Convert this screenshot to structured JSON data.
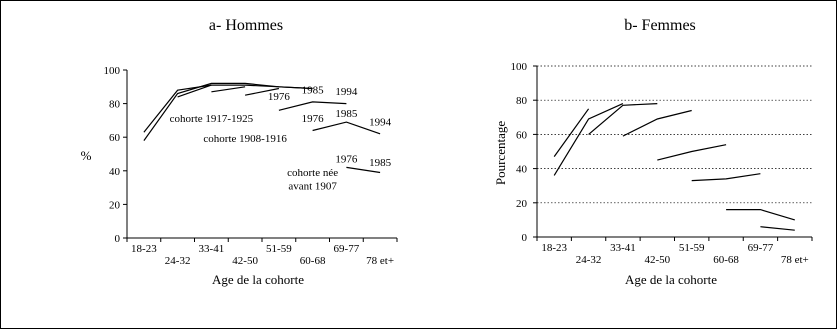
{
  "chart_data": [
    {
      "type": "line",
      "title": "a- Hommes",
      "xlabel": "Age de la cohorte",
      "ylabel": "%",
      "categories": [
        "18-23",
        "24-32",
        "33-41",
        "42-50",
        "51-59",
        "60-68",
        "69-77",
        "78 et+"
      ],
      "yticks": [
        0,
        20,
        40,
        60,
        80,
        100
      ],
      "ylim": [
        0,
        100
      ],
      "grid": false,
      "series": [
        {
          "values": [
            63,
            88,
            91,
            91,
            90,
            89,
            null,
            null
          ]
        },
        {
          "values": [
            58,
            86,
            92,
            92,
            90,
            89,
            null,
            null
          ]
        },
        {
          "values": [
            null,
            84,
            91,
            null,
            null,
            null,
            null,
            null
          ]
        },
        {
          "values": [
            null,
            null,
            87,
            90,
            null,
            null,
            null,
            null
          ]
        },
        {
          "values": [
            null,
            null,
            null,
            85,
            89,
            null,
            null,
            null
          ]
        },
        {
          "values": [
            null,
            null,
            null,
            null,
            76,
            81,
            80,
            null
          ]
        },
        {
          "values": [
            null,
            null,
            null,
            null,
            null,
            64,
            69,
            62
          ]
        },
        {
          "values": [
            null,
            null,
            null,
            null,
            null,
            null,
            42,
            39
          ]
        }
      ],
      "annotations": [
        {
          "text": "1976",
          "x": "51-59",
          "y": 82
        },
        {
          "text": "1985",
          "x": "60-68",
          "y": 86
        },
        {
          "text": "1994",
          "x": "69-77",
          "y": 85
        },
        {
          "text": "cohorte 1917-1925",
          "x": "33-41",
          "y": 69
        },
        {
          "text": "1976",
          "x": "60-68",
          "y": 69
        },
        {
          "text": "1985",
          "x": "69-77",
          "y": 72
        },
        {
          "text": "1994",
          "x": "78 et+",
          "y": 67
        },
        {
          "text": "cohorte 1908-1916",
          "x": "42-50",
          "y": 57
        },
        {
          "text": "1976",
          "x": "69-77",
          "y": 45
        },
        {
          "text": "1985",
          "x": "78 et+",
          "y": 43
        },
        {
          "text": "cohorte née",
          "x": "60-68",
          "y": 37
        },
        {
          "text": "avant 1907",
          "x": "60-68",
          "y": 29
        }
      ]
    },
    {
      "type": "line",
      "title": "b- Femmes",
      "xlabel": "Age de la cohorte",
      "ylabel": "Pourcentage",
      "categories": [
        "18-23",
        "24-32",
        "33-41",
        "42-50",
        "51-59",
        "60-68",
        "69-77",
        "78 et+"
      ],
      "yticks": [
        0,
        20,
        40,
        60,
        80,
        100
      ],
      "ylim": [
        0,
        100
      ],
      "grid": "dotted horizontal",
      "series": [
        {
          "values": [
            47,
            75,
            null,
            null,
            null,
            null,
            null,
            null
          ]
        },
        {
          "values": [
            36,
            69,
            78,
            null,
            null,
            null,
            null,
            null
          ]
        },
        {
          "values": [
            null,
            60,
            77,
            78,
            null,
            null,
            null,
            null
          ]
        },
        {
          "values": [
            null,
            null,
            59,
            69,
            74,
            null,
            null,
            null
          ]
        },
        {
          "values": [
            null,
            null,
            null,
            45,
            50,
            54,
            null,
            null
          ]
        },
        {
          "values": [
            null,
            null,
            null,
            null,
            33,
            34,
            37,
            null
          ]
        },
        {
          "values": [
            null,
            null,
            null,
            null,
            null,
            16,
            16,
            10
          ]
        },
        {
          "values": [
            null,
            null,
            null,
            null,
            null,
            null,
            6,
            4
          ]
        }
      ]
    }
  ]
}
